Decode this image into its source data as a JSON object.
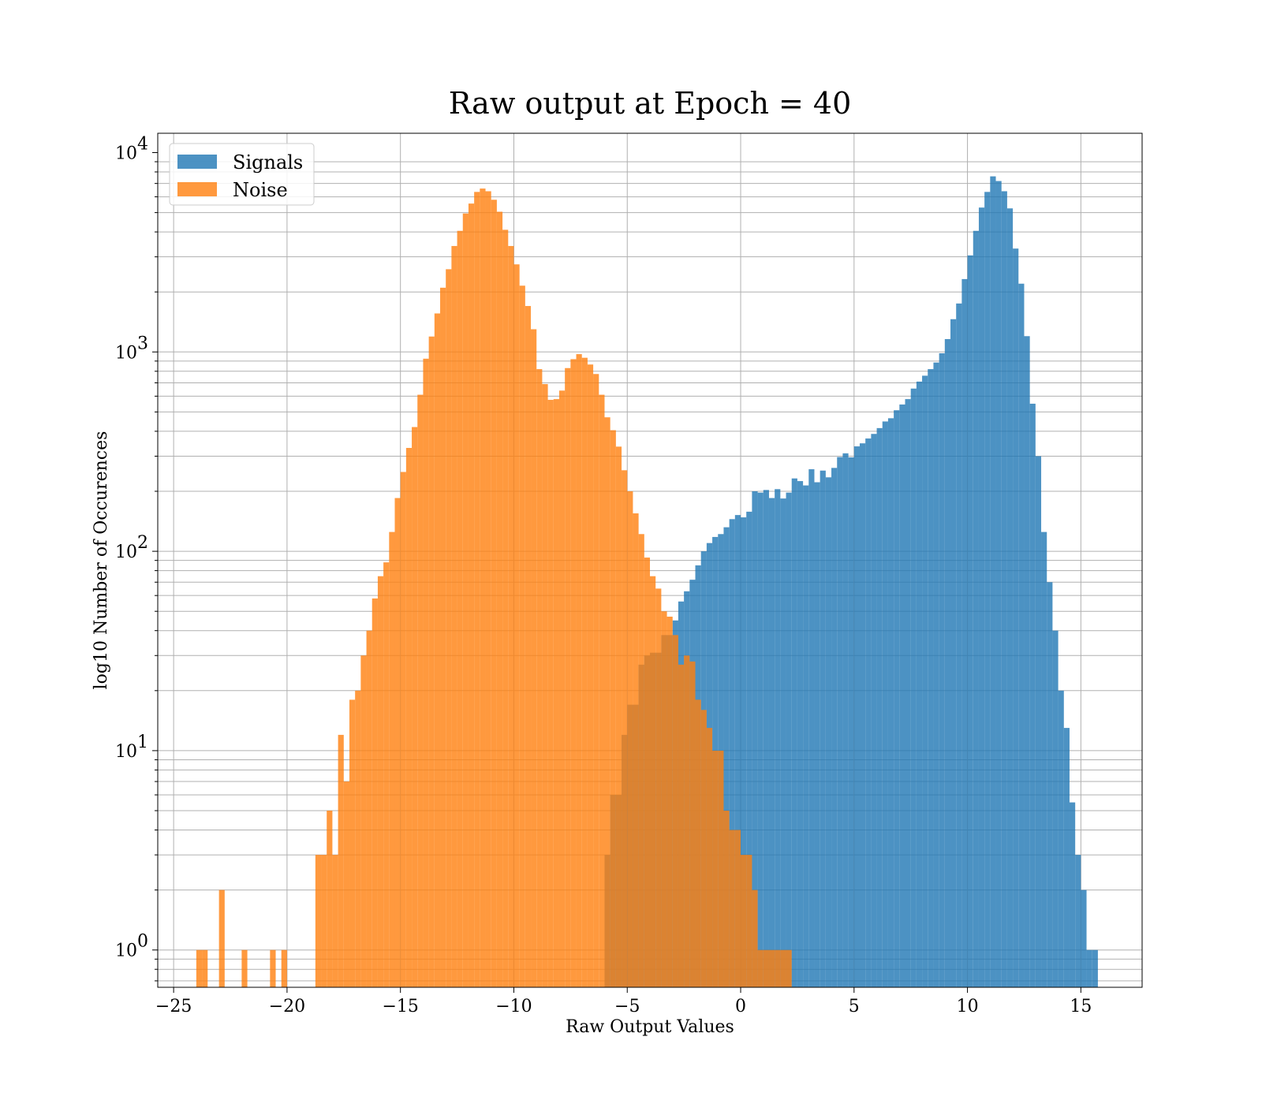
{
  "chart_data": {
    "type": "bar",
    "title": "Raw output at Epoch = 40",
    "xlabel": "Raw Output Values",
    "ylabel": "log10 Number of Occurences",
    "xlim": [
      -25.7,
      17.7
    ],
    "ylim": [
      0.65,
      12500
    ],
    "yscale": "log",
    "grid": true,
    "legend": "top-left",
    "xticks": [
      -25,
      -20,
      -15,
      -10,
      -5,
      0,
      5,
      10,
      15
    ],
    "xtick_labels": [
      "−25",
      "−20",
      "−15",
      "−10",
      "−5",
      "0",
      "5",
      "10",
      "15"
    ],
    "yticks": [
      1,
      10,
      100,
      1000,
      10000
    ],
    "ytick_base": "10",
    "ytick_exponents": [
      "0",
      "1",
      "2",
      "3",
      "4"
    ],
    "series": [
      {
        "name": "Signals",
        "color": "#1f77b4",
        "alpha": 0.8,
        "bins": [
          [
            -6.0,
            3
          ],
          [
            -5.75,
            6
          ],
          [
            -5.5,
            6
          ],
          [
            -5.25,
            12
          ],
          [
            -5.0,
            17
          ],
          [
            -4.75,
            17
          ],
          [
            -4.5,
            27
          ],
          [
            -4.25,
            30
          ],
          [
            -4.0,
            31
          ],
          [
            -3.75,
            31
          ],
          [
            -3.5,
            38
          ],
          [
            -3.25,
            38
          ],
          [
            -3.0,
            45
          ],
          [
            -2.75,
            56
          ],
          [
            -2.5,
            63
          ],
          [
            -2.25,
            72
          ],
          [
            -2.0,
            85
          ],
          [
            -1.75,
            100
          ],
          [
            -1.5,
            110
          ],
          [
            -1.25,
            118
          ],
          [
            -1.0,
            122
          ],
          [
            -0.75,
            132
          ],
          [
            -0.5,
            145
          ],
          [
            -0.25,
            152
          ],
          [
            0.0,
            148
          ],
          [
            0.25,
            158
          ],
          [
            0.5,
            200
          ],
          [
            0.75,
            197
          ],
          [
            1.0,
            203
          ],
          [
            1.25,
            185
          ],
          [
            1.5,
            205
          ],
          [
            1.75,
            184
          ],
          [
            2.0,
            197
          ],
          [
            2.25,
            232
          ],
          [
            2.5,
            225
          ],
          [
            2.75,
            214
          ],
          [
            3.0,
            258
          ],
          [
            3.25,
            222
          ],
          [
            3.5,
            254
          ],
          [
            3.75,
            235
          ],
          [
            4.0,
            262
          ],
          [
            4.25,
            297
          ],
          [
            4.5,
            310
          ],
          [
            4.75,
            296
          ],
          [
            5.0,
            336
          ],
          [
            5.25,
            348
          ],
          [
            5.5,
            368
          ],
          [
            5.75,
            388
          ],
          [
            6.0,
            415
          ],
          [
            6.25,
            448
          ],
          [
            6.5,
            465
          ],
          [
            6.75,
            510
          ],
          [
            7.0,
            545
          ],
          [
            7.25,
            580
          ],
          [
            7.5,
            655
          ],
          [
            7.75,
            710
          ],
          [
            8.0,
            760
          ],
          [
            8.25,
            820
          ],
          [
            8.5,
            885
          ],
          [
            8.75,
            985
          ],
          [
            9.0,
            1160
          ],
          [
            9.25,
            1460
          ],
          [
            9.5,
            1750
          ],
          [
            9.75,
            2320
          ],
          [
            10.0,
            3050
          ],
          [
            10.25,
            4050
          ],
          [
            10.5,
            5300
          ],
          [
            10.75,
            6350
          ],
          [
            11.0,
            7600
          ],
          [
            11.25,
            7200
          ],
          [
            11.5,
            6400
          ],
          [
            11.75,
            5250
          ],
          [
            12.0,
            3300
          ],
          [
            12.25,
            2200
          ],
          [
            12.5,
            1200
          ],
          [
            12.75,
            550
          ],
          [
            13.0,
            300
          ],
          [
            13.25,
            125
          ],
          [
            13.5,
            70
          ],
          [
            13.75,
            40
          ],
          [
            14.0,
            20
          ],
          [
            14.25,
            13
          ],
          [
            14.5,
            5.5
          ],
          [
            14.75,
            3
          ],
          [
            15.0,
            2
          ],
          [
            15.25,
            1
          ],
          [
            15.5,
            1
          ]
        ]
      },
      {
        "name": "Noise",
        "color": "#ff7f0e",
        "alpha": 0.8,
        "bins": [
          [
            -24.0,
            1
          ],
          [
            -23.75,
            1
          ],
          [
            -23.0,
            2
          ],
          [
            -22.0,
            1
          ],
          [
            -20.75,
            1
          ],
          [
            -20.25,
            1
          ],
          [
            -18.75,
            3
          ],
          [
            -18.5,
            3
          ],
          [
            -18.25,
            5
          ],
          [
            -18.0,
            3
          ],
          [
            -17.75,
            12
          ],
          [
            -17.5,
            7
          ],
          [
            -17.25,
            18
          ],
          [
            -17.0,
            20
          ],
          [
            -16.75,
            30
          ],
          [
            -16.5,
            40
          ],
          [
            -16.25,
            58
          ],
          [
            -16.0,
            75
          ],
          [
            -15.75,
            88
          ],
          [
            -15.5,
            125
          ],
          [
            -15.25,
            185
          ],
          [
            -15.0,
            250
          ],
          [
            -14.75,
            330
          ],
          [
            -14.5,
            420
          ],
          [
            -14.25,
            610
          ],
          [
            -14.0,
            925
          ],
          [
            -13.75,
            1195
          ],
          [
            -13.5,
            1560
          ],
          [
            -13.25,
            2100
          ],
          [
            -13.0,
            2600
          ],
          [
            -12.75,
            3400
          ],
          [
            -12.5,
            4050
          ],
          [
            -12.25,
            4950
          ],
          [
            -12.0,
            5550
          ],
          [
            -11.75,
            6350
          ],
          [
            -11.5,
            6600
          ],
          [
            -11.25,
            6400
          ],
          [
            -11.0,
            5800
          ],
          [
            -10.75,
            5050
          ],
          [
            -10.5,
            4100
          ],
          [
            -10.25,
            3400
          ],
          [
            -10.0,
            2750
          ],
          [
            -9.75,
            2150
          ],
          [
            -9.5,
            1700
          ],
          [
            -9.25,
            1300
          ],
          [
            -9.0,
            820
          ],
          [
            -8.75,
            690
          ],
          [
            -8.5,
            575
          ],
          [
            -8.25,
            580
          ],
          [
            -8.0,
            640
          ],
          [
            -7.75,
            830
          ],
          [
            -7.5,
            920
          ],
          [
            -7.25,
            975
          ],
          [
            -7.0,
            935
          ],
          [
            -6.75,
            865
          ],
          [
            -6.5,
            775
          ],
          [
            -6.25,
            610
          ],
          [
            -6.0,
            470
          ],
          [
            -5.75,
            405
          ],
          [
            -5.5,
            335
          ],
          [
            -5.25,
            255
          ],
          [
            -5.0,
            200
          ],
          [
            -4.75,
            155
          ],
          [
            -4.5,
            122
          ],
          [
            -4.25,
            93
          ],
          [
            -4.0,
            75
          ],
          [
            -3.75,
            65
          ],
          [
            -3.5,
            50
          ],
          [
            -3.25,
            47
          ],
          [
            -3.0,
            38
          ],
          [
            -2.75,
            27
          ],
          [
            -2.5,
            30
          ],
          [
            -2.25,
            28
          ],
          [
            -2.0,
            18
          ],
          [
            -1.75,
            16
          ],
          [
            -1.5,
            13
          ],
          [
            -1.25,
            10
          ],
          [
            -1.0,
            10
          ],
          [
            -0.75,
            5
          ],
          [
            -0.5,
            4
          ],
          [
            -0.25,
            4
          ],
          [
            0.0,
            3
          ],
          [
            0.25,
            3
          ],
          [
            0.5,
            2
          ],
          [
            0.75,
            1
          ],
          [
            1.0,
            1
          ],
          [
            1.25,
            1
          ],
          [
            1.5,
            1
          ],
          [
            1.75,
            1
          ],
          [
            2.0,
            1
          ]
        ]
      }
    ]
  }
}
